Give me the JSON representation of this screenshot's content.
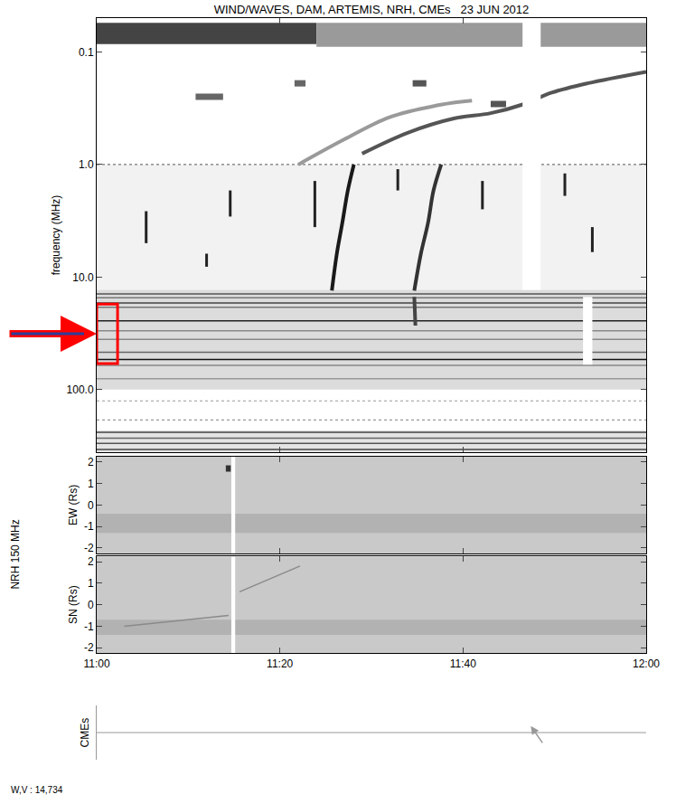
{
  "chart_data": [
    {
      "type": "line",
      "title": "WIND/WAVES, DAM, ARTEMIS, NRH, CMEs   23 JUN 2012",
      "y_label": "frequency (MHz)",
      "log": "y",
      "tick_labels": "y",
      "xlim": [
        11.0,
        12.0
      ],
      "xticks": [
        {
          "value": 11.0,
          "label": "11:00"
        },
        {
          "value": 11.3333333,
          "label": "11:20"
        },
        {
          "value": 11.6666667,
          "label": "11:40"
        },
        {
          "value": 12.0,
          "label": "12:00"
        }
      ],
      "ylim": [
        360,
        0.05
      ],
      "yticks": [
        0.1,
        {
          "value": 1,
          "label": "1.0"
        },
        {
          "value": 10,
          "label": "10.0"
        },
        {
          "value": 100,
          "label": "100.0"
        }
      ],
      "bands": [
        {
          "x": [
            11.0,
            12.0
          ],
          "y": [
            1.0,
            13
          ],
          "color": "#f2f2f2"
        },
        {
          "x": [
            11.0,
            12.0
          ],
          "y": [
            13,
            100
          ],
          "color": "#dcdcdc"
        },
        {
          "x": [
            11.0,
            12.0
          ],
          "y": [
            230,
            360
          ],
          "color": "#e4e4e4"
        },
        {
          "x": [
            11.0,
            11.4
          ],
          "y": [
            0.055,
            0.085
          ],
          "color": "#444444"
        },
        {
          "x": [
            11.4,
            12.0
          ],
          "y": [
            0.055,
            0.09
          ],
          "color": "#9a9a9a"
        }
      ],
      "interference": [
        {
          "value": 1.0,
          "color": "#777777",
          "line_style": "dot"
        },
        {
          "value": 14.1,
          "color": "#555555",
          "line_style": "thin"
        },
        {
          "value": 15.3,
          "color": "#777777",
          "line_style": "thin"
        },
        {
          "value": 17.0,
          "color": "#444444",
          "line_style": "thin"
        },
        {
          "value": 18.6,
          "color": "#777777",
          "line_style": "thin"
        },
        {
          "value": 24.5,
          "color": "#222222",
          "line_style": "thin"
        },
        {
          "value": 30,
          "color": "#888888",
          "line_style": "thin"
        },
        {
          "value": 35.8,
          "color": "#888888",
          "line_style": "thin"
        },
        {
          "value": 46.5,
          "color": "#666666",
          "line_style": "thin"
        },
        {
          "value": 54,
          "color": "#111111",
          "line_style": "thin"
        },
        {
          "value": 61,
          "color": "#888888",
          "line_style": "thin"
        },
        {
          "value": 80,
          "color": "#999999",
          "line_style": "thin"
        },
        {
          "value": 126,
          "color": "#999999",
          "line_style": "dot"
        },
        {
          "value": 186,
          "color": "#999999",
          "line_style": "dot"
        },
        {
          "value": 240,
          "color": "#444444",
          "line_style": "thin"
        },
        {
          "value": 270,
          "color": "#666666",
          "line_style": "thin"
        },
        {
          "value": 300,
          "color": "#555555",
          "line_style": "thin"
        },
        {
          "value": 340,
          "color": "#444444",
          "line_style": "thin"
        }
      ],
      "series": [
        {
          "type": "line",
          "color": "#1a1a1a",
          "line_style": "solid",
          "x": [
            11.428,
            11.437,
            11.447,
            11.457,
            11.468
          ],
          "values": [
            13.2,
            6.2,
            3.3,
            1.7,
            1.0
          ]
        },
        {
          "type": "line",
          "color": "#333333",
          "line_style": "solid",
          "x": [
            11.578,
            11.59,
            11.603,
            11.613,
            11.627
          ],
          "values": [
            13.2,
            6.2,
            3.3,
            1.7,
            1.0
          ]
        },
        {
          "type": "line",
          "color": "#444444",
          "line_style": "solid",
          "x": [
            11.578,
            11.58
          ],
          "values": [
            15,
            27
          ]
        },
        {
          "type": "line",
          "color": "#555555",
          "line_style": "solid",
          "x": [
            11.483,
            11.567,
            11.65,
            11.717,
            11.778,
            11.828,
            11.893,
            12.0
          ],
          "values": [
            0.8,
            0.52,
            0.39,
            0.35,
            0.29,
            0.23,
            0.19,
            0.15
          ]
        },
        {
          "type": "line",
          "color": "#9a9a9a",
          "line_style": "solid",
          "x": [
            11.367,
            11.45,
            11.533,
            11.617,
            11.683
          ],
          "values": [
            1.0,
            0.6,
            0.38,
            0.3,
            0.27
          ]
        },
        {
          "type": "line",
          "color": "#666666",
          "line_style": "thick",
          "x": [
            11.18,
            11.23
          ],
          "values": [
            0.25,
            0.25
          ]
        },
        {
          "type": "line",
          "color": "#666666",
          "line_style": "thick",
          "x": [
            11.36,
            11.38
          ],
          "values": [
            0.19,
            0.19
          ]
        },
        {
          "type": "line",
          "color": "#555555",
          "line_style": "thick",
          "x": [
            11.575,
            11.6
          ],
          "values": [
            0.19,
            0.19
          ]
        },
        {
          "type": "line",
          "color": "#555555",
          "line_style": "thick",
          "x": [
            11.717,
            11.745
          ],
          "values": [
            0.29,
            0.29
          ]
        }
      ],
      "spikes": [
        {
          "x": 11.09,
          "y": [
            2.6,
            5.0
          ]
        },
        {
          "x": 11.2,
          "y": [
            6.2,
            8.1
          ]
        },
        {
          "x": 11.243,
          "y": [
            1.7,
            2.9
          ]
        },
        {
          "x": 11.397,
          "y": [
            1.4,
            3.6
          ]
        },
        {
          "x": 11.548,
          "y": [
            1.1,
            1.7
          ]
        },
        {
          "x": 11.702,
          "y": [
            1.4,
            2.5
          ]
        },
        {
          "x": 11.852,
          "y": [
            1.2,
            1.9
          ]
        },
        {
          "x": 11.902,
          "y": [
            3.6,
            6.0
          ]
        }
      ],
      "gaps": [
        {
          "x": [
            11.775,
            11.808
          ],
          "y": [
            0.05,
            13
          ]
        },
        {
          "x": [
            11.885,
            11.902
          ],
          "y": [
            15,
            60
          ]
        }
      ],
      "highlight": {
        "x": [
          11.0,
          11.038
        ],
        "y": [
          17.4,
          58.6
        ],
        "color": "#ff0000"
      }
    },
    {
      "type": "line",
      "y_label": "EW (Rs)",
      "group_label": "NRH 150 MHz",
      "tick_labels": "y",
      "xlim": [
        11.0,
        12.0
      ],
      "xticks": [
        {
          "value": 11.0,
          "label": "11:00"
        },
        {
          "value": 11.3333333,
          "label": "11:20"
        },
        {
          "value": 11.6666667,
          "label": "11:40"
        },
        {
          "value": 12.0,
          "label": "12:00"
        }
      ],
      "ylim": [
        -2.25,
        2.25
      ],
      "yticks": [
        -2,
        -1,
        0,
        1,
        2
      ],
      "bands": [
        {
          "x": [
            11.0,
            12.0
          ],
          "y": [
            -2.25,
            2.25
          ],
          "color": "#c9c9c9"
        },
        {
          "x": [
            11.0,
            12.0
          ],
          "y": [
            -1.3,
            -0.4
          ],
          "color": "#b2b2b2"
        }
      ],
      "series": [
        {
          "type": "line",
          "color": "#333333",
          "line_style": "thick",
          "x": [
            11.235,
            11.244
          ],
          "values": [
            1.7,
            1.7
          ]
        }
      ],
      "gaps": [
        {
          "x": [
            11.245,
            11.252
          ],
          "y": [
            -2.25,
            2.25
          ]
        }
      ]
    },
    {
      "type": "line",
      "y_label": "SN (Rs)",
      "tick_labels": true,
      "xlim": [
        11.0,
        12.0
      ],
      "xticks": [
        {
          "value": 11.0,
          "label": "11:00"
        },
        {
          "value": 11.3333333,
          "label": "11:20"
        },
        {
          "value": 11.6666667,
          "label": "11:40"
        },
        {
          "value": 12.0,
          "label": "12:00"
        }
      ],
      "ylim": [
        -2.25,
        2.25
      ],
      "yticks": [
        -2,
        -1,
        0,
        1,
        2
      ],
      "bands": [
        {
          "x": [
            11.0,
            12.0
          ],
          "y": [
            -2.25,
            2.25
          ],
          "color": "#c9c9c9"
        },
        {
          "x": [
            11.0,
            12.0
          ],
          "y": [
            -1.4,
            -0.7
          ],
          "color": "#b2b2b2"
        }
      ],
      "series": [
        {
          "type": "line",
          "color": "#8a8a8a",
          "line_style": "thin",
          "x": [
            11.05,
            11.24
          ],
          "values": [
            -1.0,
            -0.5
          ]
        },
        {
          "type": "line",
          "color": "#8a8a8a",
          "line_style": "thin",
          "x": [
            11.26,
            11.37
          ],
          "values": [
            0.6,
            1.8
          ]
        }
      ],
      "gaps": [
        {
          "x": [
            11.245,
            11.252
          ],
          "y": [
            -2.25,
            2.25
          ]
        }
      ]
    },
    {
      "type": "timeline",
      "y_label": "CMEs",
      "tick_labels": false,
      "xlim": [
        11.0,
        12.0
      ],
      "cmes": [
        {
          "time": 11.79,
          "color": "#999999"
        }
      ],
      "footnote": "W,V : 14,734"
    }
  ]
}
